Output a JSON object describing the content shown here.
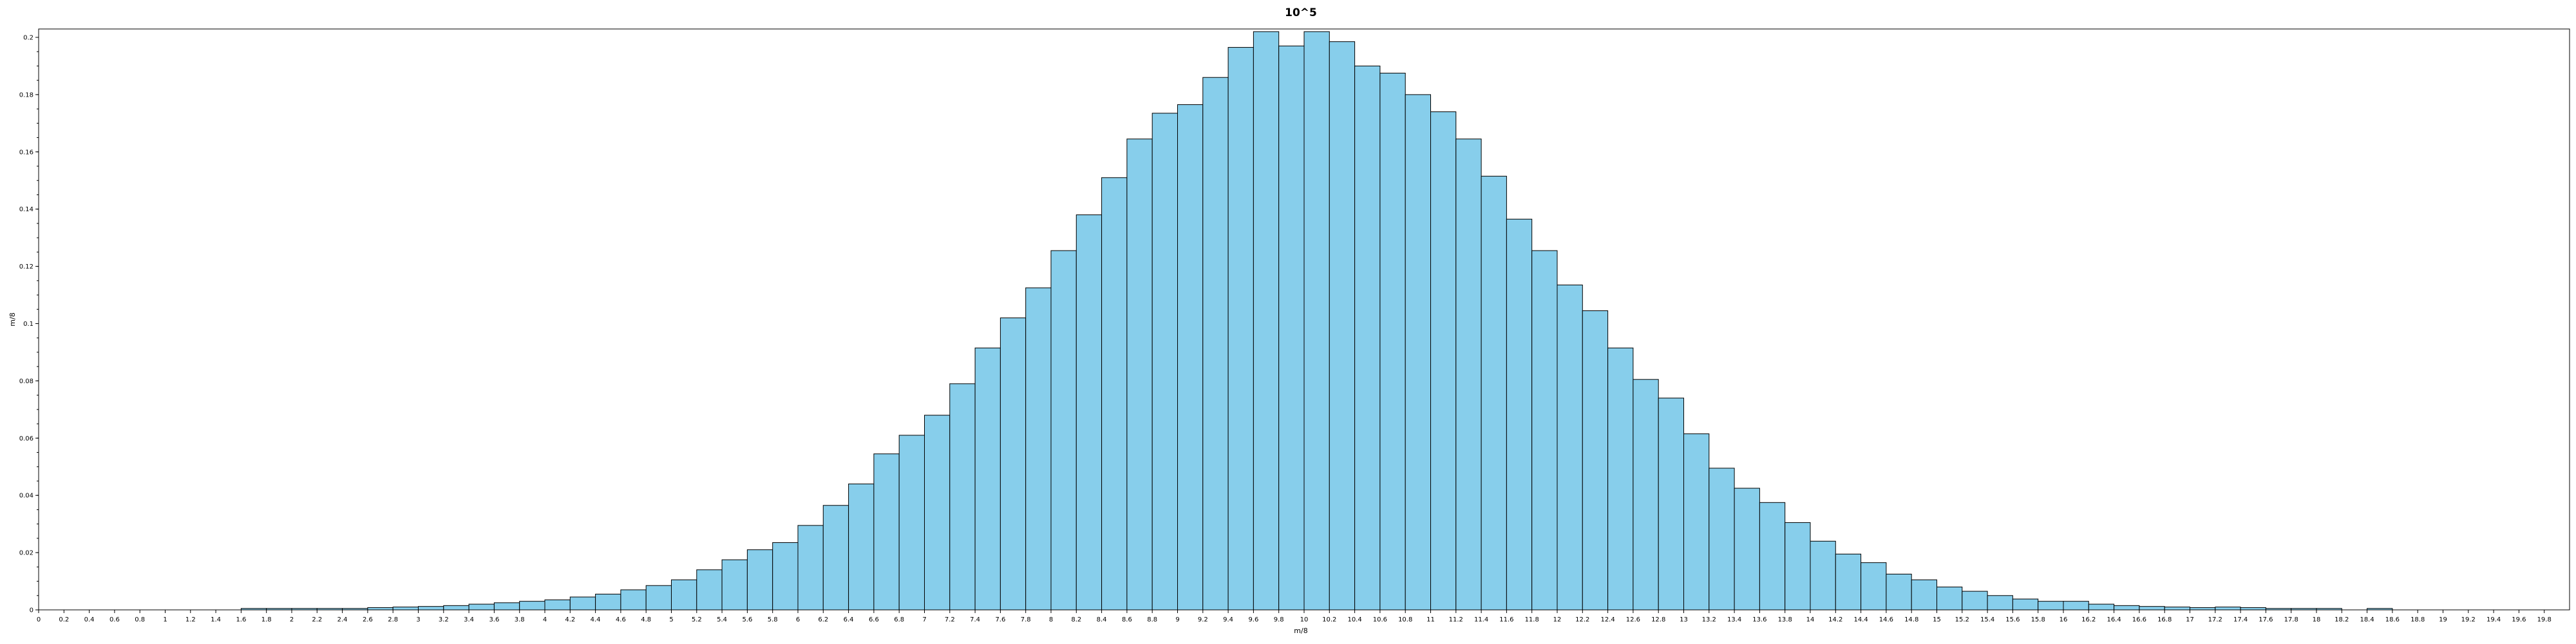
{
  "chart_data": {
    "type": "bar",
    "title": "10^5",
    "xlabel": "m/8",
    "ylabel": "m/8",
    "xlim": [
      0,
      20
    ],
    "ylim": [
      0,
      0.2
    ],
    "grid": false,
    "bin_width": 0.2,
    "x_ticks": [
      "0",
      "0.2",
      "0.4",
      "0.6",
      "0.8",
      "1",
      "1.2",
      "1.4",
      "1.6",
      "1.8",
      "2",
      "2.2",
      "2.4",
      "2.6",
      "2.8",
      "3",
      "3.2",
      "3.4",
      "3.6",
      "3.8",
      "4",
      "4.2",
      "4.4",
      "4.6",
      "4.8",
      "5",
      "5.2",
      "5.4",
      "5.6",
      "5.8",
      "6",
      "6.2",
      "6.4",
      "6.6",
      "6.8",
      "7",
      "7.2",
      "7.4",
      "7.6",
      "7.8",
      "8",
      "8.2",
      "8.4",
      "8.6",
      "8.8",
      "9",
      "9.2",
      "9.4",
      "9.6",
      "9.8",
      "10",
      "10.2",
      "10.4",
      "10.6",
      "10.8",
      "11",
      "11.2",
      "11.4",
      "11.6",
      "11.8",
      "12",
      "12.2",
      "12.4",
      "12.6",
      "12.8",
      "13",
      "13.2",
      "13.4",
      "13.6",
      "13.8",
      "14",
      "14.2",
      "14.4",
      "14.6",
      "14.8",
      "15",
      "15.2",
      "15.4",
      "15.6",
      "15.8",
      "16",
      "16.2",
      "16.4",
      "16.6",
      "16.8",
      "17",
      "17.2",
      "17.4",
      "17.6",
      "17.8",
      "18",
      "18.2",
      "18.4",
      "18.6",
      "18.8",
      "19",
      "19.2",
      "19.4",
      "19.6",
      "19.8"
    ],
    "y_ticks": [
      "0",
      "0.02",
      "0.04",
      "0.06",
      "0.08",
      "0.1",
      "0.12",
      "0.14",
      "0.16",
      "0.18",
      "0.2"
    ],
    "bin_starts": [
      1.6,
      1.8,
      2.0,
      2.2,
      2.4,
      2.6,
      2.8,
      3.0,
      3.2,
      3.4,
      3.6,
      3.8,
      4.0,
      4.2,
      4.4,
      4.6,
      4.8,
      5.0,
      5.2,
      5.4,
      5.6,
      5.8,
      6.0,
      6.2,
      6.4,
      6.6,
      6.8,
      7.0,
      7.2,
      7.4,
      7.6,
      7.8,
      8.0,
      8.2,
      8.4,
      8.6,
      8.8,
      9.0,
      9.2,
      9.4,
      9.6,
      9.8,
      10.0,
      10.2,
      10.4,
      10.6,
      10.8,
      11.0,
      11.2,
      11.4,
      11.6,
      11.8,
      12.0,
      12.2,
      12.4,
      12.6,
      12.8,
      13.0,
      13.2,
      13.4,
      13.6,
      13.8,
      14.0,
      14.2,
      14.4,
      14.6,
      14.8,
      15.0,
      15.2,
      15.4,
      15.6,
      15.8,
      16.0,
      16.2,
      16.4,
      16.6,
      16.8,
      17.0,
      17.2,
      17.4,
      17.6,
      17.8,
      18.0,
      18.4
    ],
    "values": [
      0.0005,
      0.0005,
      0.0005,
      0.0005,
      0.0005,
      0.0008,
      0.001,
      0.0012,
      0.0015,
      0.002,
      0.0025,
      0.003,
      0.0035,
      0.0045,
      0.0055,
      0.007,
      0.0085,
      0.0105,
      0.014,
      0.0175,
      0.021,
      0.0235,
      0.0295,
      0.0365,
      0.044,
      0.0545,
      0.061,
      0.068,
      0.079,
      0.0915,
      0.102,
      0.1125,
      0.1255,
      0.138,
      0.151,
      0.1645,
      0.1735,
      0.1765,
      0.186,
      0.1965,
      0.202,
      0.197,
      0.202,
      0.1985,
      0.19,
      0.1875,
      0.18,
      0.174,
      0.1645,
      0.1515,
      0.1365,
      0.1255,
      0.1135,
      0.1045,
      0.0915,
      0.0805,
      0.074,
      0.0615,
      0.0495,
      0.0425,
      0.0375,
      0.0305,
      0.024,
      0.0195,
      0.0165,
      0.0125,
      0.0105,
      0.008,
      0.0065,
      0.005,
      0.0038,
      0.003,
      0.003,
      0.002,
      0.0015,
      0.0012,
      0.001,
      0.0008,
      0.001,
      0.0008,
      0.0005,
      0.0005,
      0.0005,
      0.0005
    ]
  }
}
